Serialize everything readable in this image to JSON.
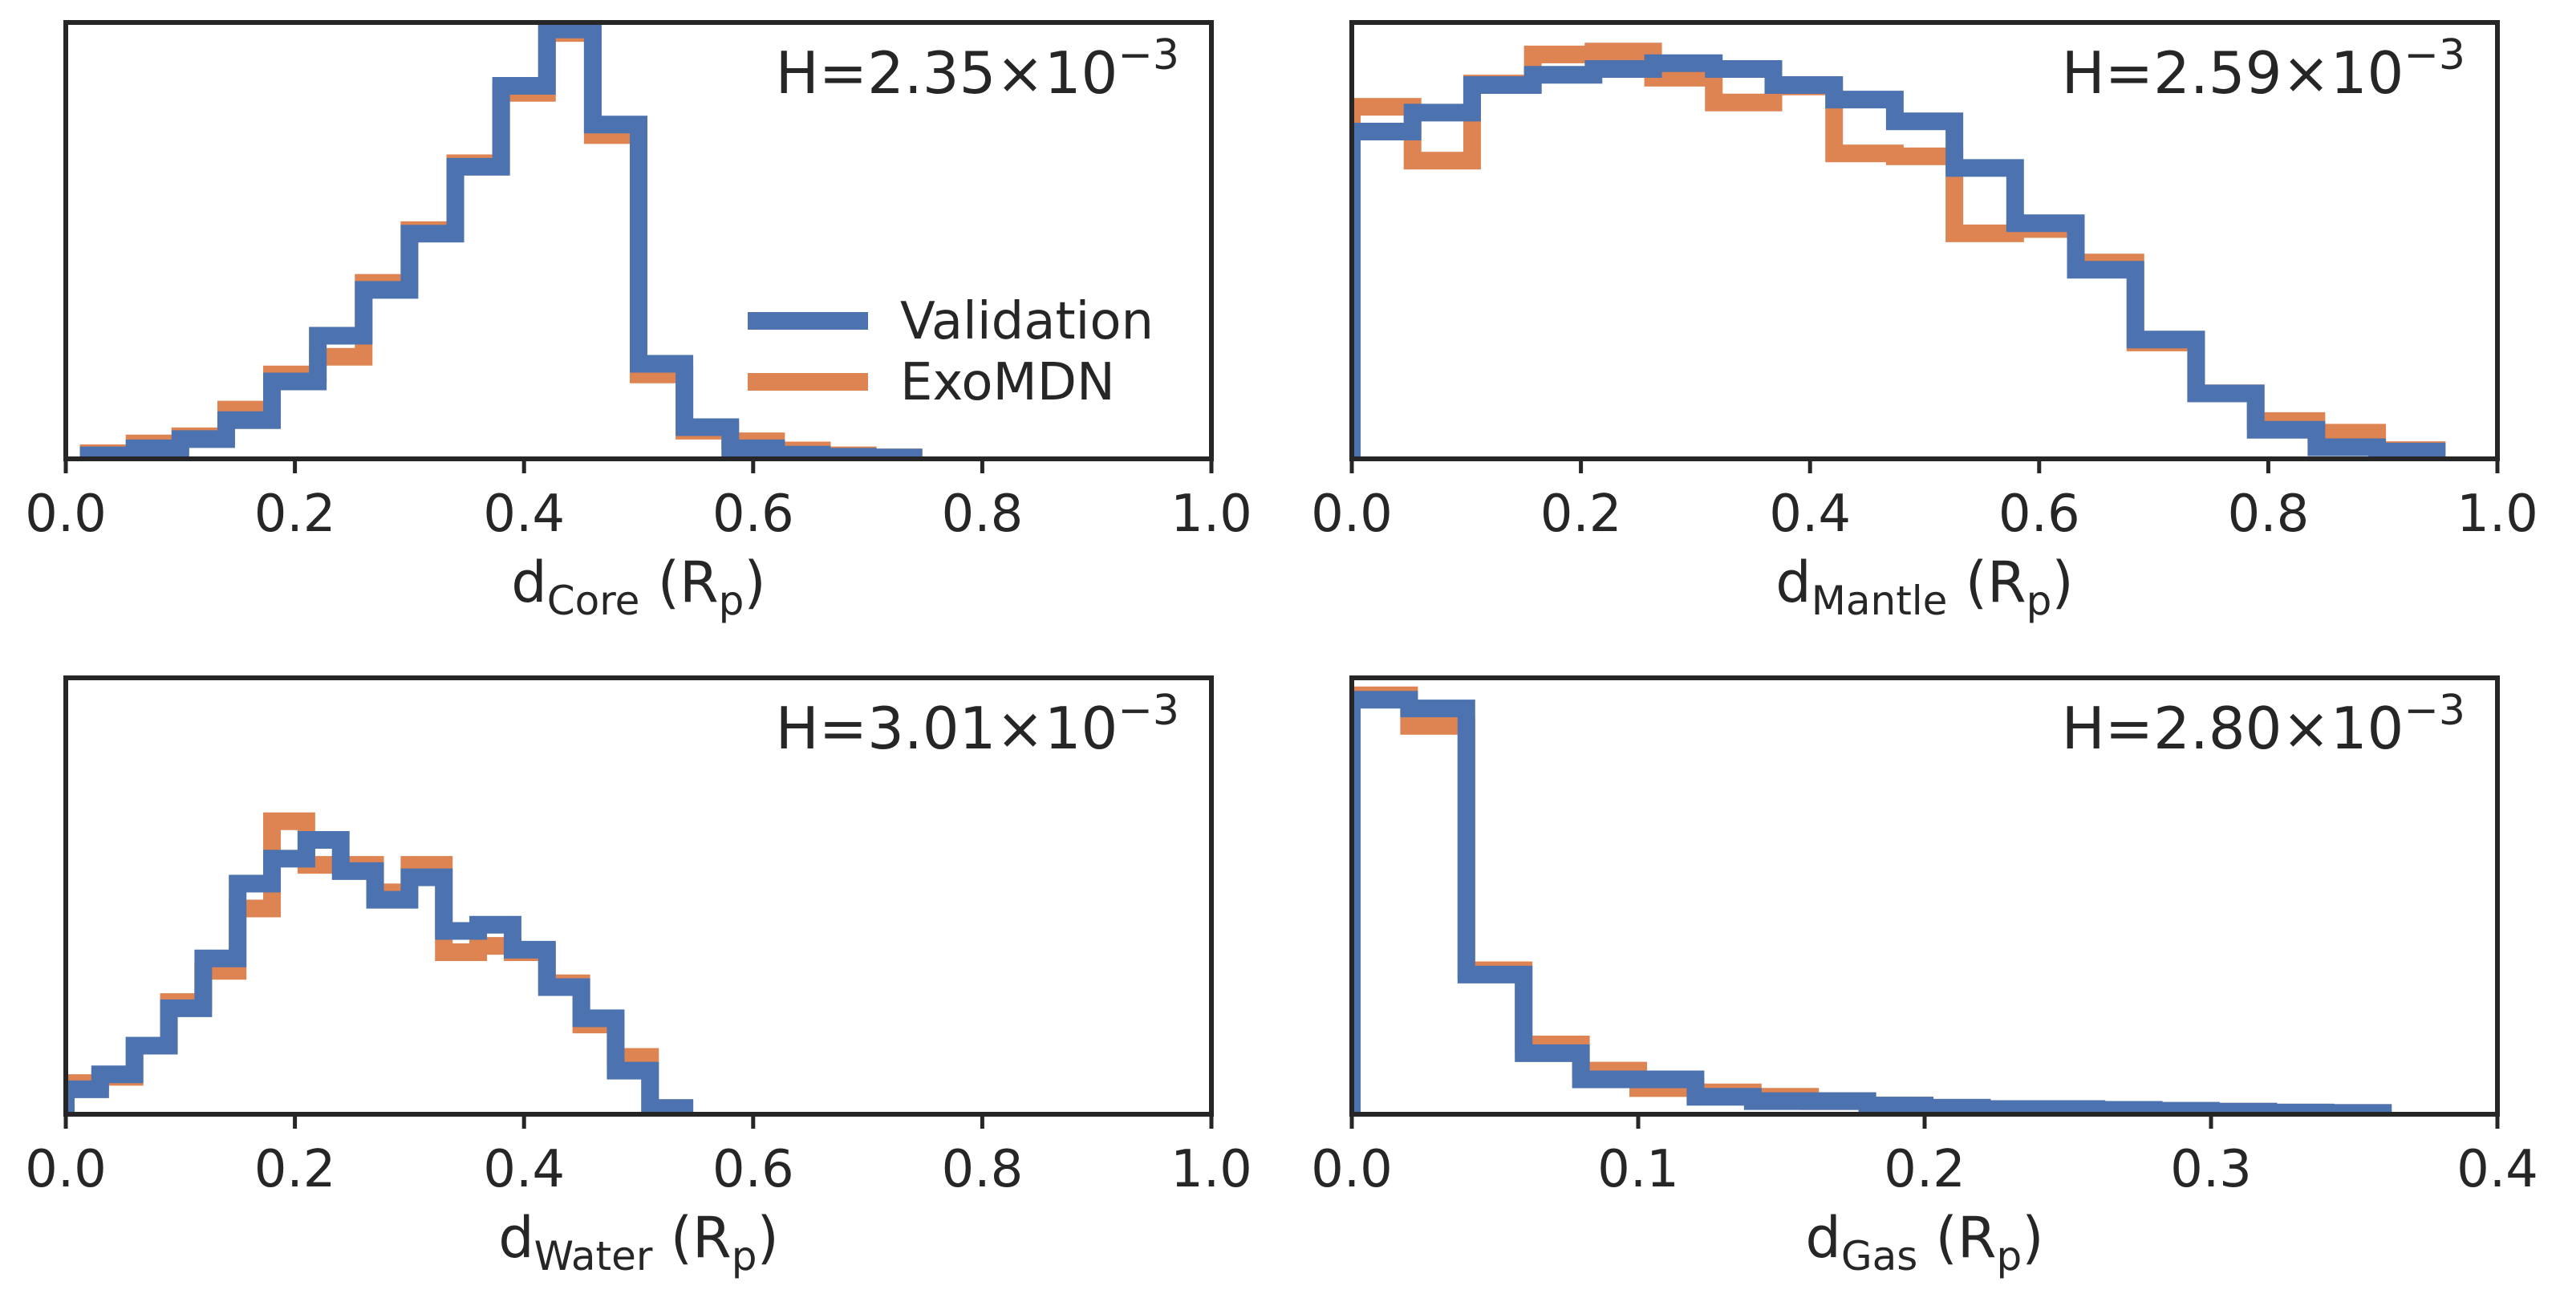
{
  "colors": {
    "validation": "#4c72b0",
    "exomdn": "#dd8452",
    "axis": "#262626"
  },
  "legend": {
    "entries": [
      "Validation",
      "ExoMDN"
    ]
  },
  "chart_data": [
    {
      "id": "core",
      "type": "histogram",
      "xlabel": {
        "base": "d",
        "sub": "Core",
        "unit": "(R",
        "unit_sub": "p",
        "close": ")"
      },
      "xlim": [
        0,
        1.0
      ],
      "ylim": [
        0,
        6.2
      ],
      "xticks": [
        "0.0",
        "0.2",
        "0.4",
        "0.6",
        "0.8",
        "1.0"
      ],
      "annotation": {
        "prefix": "H=2.35×10",
        "exp": "−3"
      },
      "show_legend": true,
      "series": [
        {
          "name": "Validation",
          "edges": [
            0.02,
            0.06,
            0.1,
            0.14,
            0.18,
            0.22,
            0.26,
            0.3,
            0.34,
            0.38,
            0.42,
            0.46,
            0.5,
            0.54,
            0.58,
            0.62,
            0.66,
            0.7,
            0.74
          ],
          "values": [
            0.05,
            0.15,
            0.28,
            0.55,
            1.1,
            1.75,
            2.4,
            3.2,
            4.15,
            5.3,
            6.1,
            4.75,
            1.35,
            0.45,
            0.15,
            0.06,
            0.03,
            0.02
          ]
        },
        {
          "name": "ExoMDN",
          "edges": [
            0.02,
            0.06,
            0.1,
            0.14,
            0.18,
            0.22,
            0.26,
            0.3,
            0.34,
            0.38,
            0.42,
            0.46,
            0.5,
            0.54,
            0.58,
            0.62,
            0.66,
            0.7,
            0.74
          ],
          "values": [
            0.08,
            0.22,
            0.32,
            0.7,
            1.2,
            1.45,
            2.5,
            3.25,
            4.2,
            5.2,
            6.05,
            4.6,
            1.2,
            0.4,
            0.25,
            0.12,
            0.05,
            0.02
          ]
        }
      ]
    },
    {
      "id": "mantle",
      "type": "histogram",
      "xlabel": {
        "base": "d",
        "sub": "Mantle",
        "unit": "(R",
        "unit_sub": "p",
        "close": ")"
      },
      "xlim": [
        0,
        1.0
      ],
      "ylim": [
        0,
        3.0
      ],
      "xticks": [
        "0.0",
        "0.2",
        "0.4",
        "0.6",
        "0.8",
        "1.0"
      ],
      "annotation": {
        "prefix": "H=2.59×10",
        "exp": "−3"
      },
      "show_legend": false,
      "series": [
        {
          "name": "Validation",
          "edges": [
            0.0,
            0.053,
            0.105,
            0.158,
            0.211,
            0.263,
            0.316,
            0.368,
            0.421,
            0.474,
            0.526,
            0.579,
            0.632,
            0.684,
            0.737,
            0.789,
            0.842,
            0.895,
            0.947
          ],
          "values": [
            2.25,
            2.38,
            2.57,
            2.64,
            2.68,
            2.72,
            2.68,
            2.57,
            2.47,
            2.32,
            2.0,
            1.62,
            1.3,
            0.82,
            0.45,
            0.2,
            0.08,
            0.05
          ]
        },
        {
          "name": "ExoMDN",
          "edges": [
            0.0,
            0.053,
            0.105,
            0.158,
            0.211,
            0.263,
            0.316,
            0.368,
            0.421,
            0.474,
            0.526,
            0.579,
            0.632,
            0.684,
            0.737,
            0.789,
            0.842,
            0.895,
            0.947
          ],
          "values": [
            2.42,
            2.05,
            2.58,
            2.78,
            2.8,
            2.62,
            2.45,
            2.56,
            2.1,
            2.08,
            1.55,
            1.58,
            1.35,
            0.8,
            0.45,
            0.26,
            0.18,
            0.06
          ]
        }
      ]
    },
    {
      "id": "water",
      "type": "histogram",
      "xlabel": {
        "base": "d",
        "sub": "Water",
        "unit": "(R",
        "unit_sub": "p",
        "close": ")"
      },
      "xlim": [
        0,
        1.0
      ],
      "ylim": [
        0,
        3.5
      ],
      "xticks": [
        "0.0",
        "0.2",
        "0.4",
        "0.6",
        "0.8",
        "1.0"
      ],
      "annotation": {
        "prefix": "H=3.01×10",
        "exp": "−3"
      },
      "show_legend": false,
      "series": [
        {
          "name": "Validation",
          "edges": [
            0.0,
            0.03,
            0.06,
            0.09,
            0.12,
            0.15,
            0.18,
            0.21,
            0.24,
            0.27,
            0.3,
            0.33,
            0.36,
            0.39,
            0.42,
            0.45,
            0.48,
            0.51,
            0.54
          ],
          "values": [
            0.2,
            0.32,
            0.55,
            0.85,
            1.25,
            1.85,
            2.05,
            2.2,
            1.95,
            1.72,
            1.9,
            1.47,
            1.52,
            1.32,
            1.02,
            0.77,
            0.35,
            0.05
          ]
        },
        {
          "name": "ExoMDN",
          "edges": [
            0.0,
            0.03,
            0.06,
            0.09,
            0.12,
            0.15,
            0.18,
            0.21,
            0.24,
            0.27,
            0.3,
            0.33,
            0.36,
            0.39,
            0.42,
            0.45,
            0.48,
            0.51,
            0.54
          ],
          "values": [
            0.25,
            0.3,
            0.55,
            0.9,
            1.15,
            1.65,
            2.35,
            2.0,
            2.0,
            1.78,
            2.0,
            1.3,
            1.35,
            1.3,
            1.05,
            0.72,
            0.46,
            0.05
          ]
        }
      ]
    },
    {
      "id": "gas",
      "type": "histogram",
      "xlabel": {
        "base": "d",
        "sub": "Gas",
        "unit": "(R",
        "unit_sub": "p",
        "close": ")"
      },
      "xlim": [
        0,
        0.4
      ],
      "ylim": [
        0,
        1.0
      ],
      "xticks": [
        "0.0",
        "0.1",
        "0.2",
        "0.3",
        "0.4"
      ],
      "annotation": {
        "prefix": "H=2.80×10",
        "exp": "−3"
      },
      "show_legend": false,
      "series": [
        {
          "name": "Validation",
          "edges": [
            0.0,
            0.02,
            0.04,
            0.06,
            0.08,
            0.1,
            0.12,
            0.14,
            0.16,
            0.18,
            0.2,
            0.22,
            0.24,
            0.26,
            0.28,
            0.3,
            0.32,
            0.34,
            0.36
          ],
          "values": [
            0.95,
            0.93,
            0.32,
            0.14,
            0.08,
            0.08,
            0.04,
            0.03,
            0.03,
            0.02,
            0.015,
            0.012,
            0.012,
            0.01,
            0.008,
            0.006,
            0.004,
            0.003
          ]
        },
        {
          "name": "ExoMDN",
          "edges": [
            0.0,
            0.02,
            0.04,
            0.06,
            0.08,
            0.1,
            0.12,
            0.14,
            0.16,
            0.18,
            0.2,
            0.22,
            0.24,
            0.26,
            0.28,
            0.3,
            0.32,
            0.34,
            0.36
          ],
          "values": [
            0.96,
            0.89,
            0.33,
            0.16,
            0.1,
            0.06,
            0.05,
            0.04,
            0.03,
            0.02,
            0.015,
            0.012,
            0.01,
            0.008,
            0.007,
            0.006,
            0.004,
            0.003
          ]
        }
      ]
    }
  ]
}
